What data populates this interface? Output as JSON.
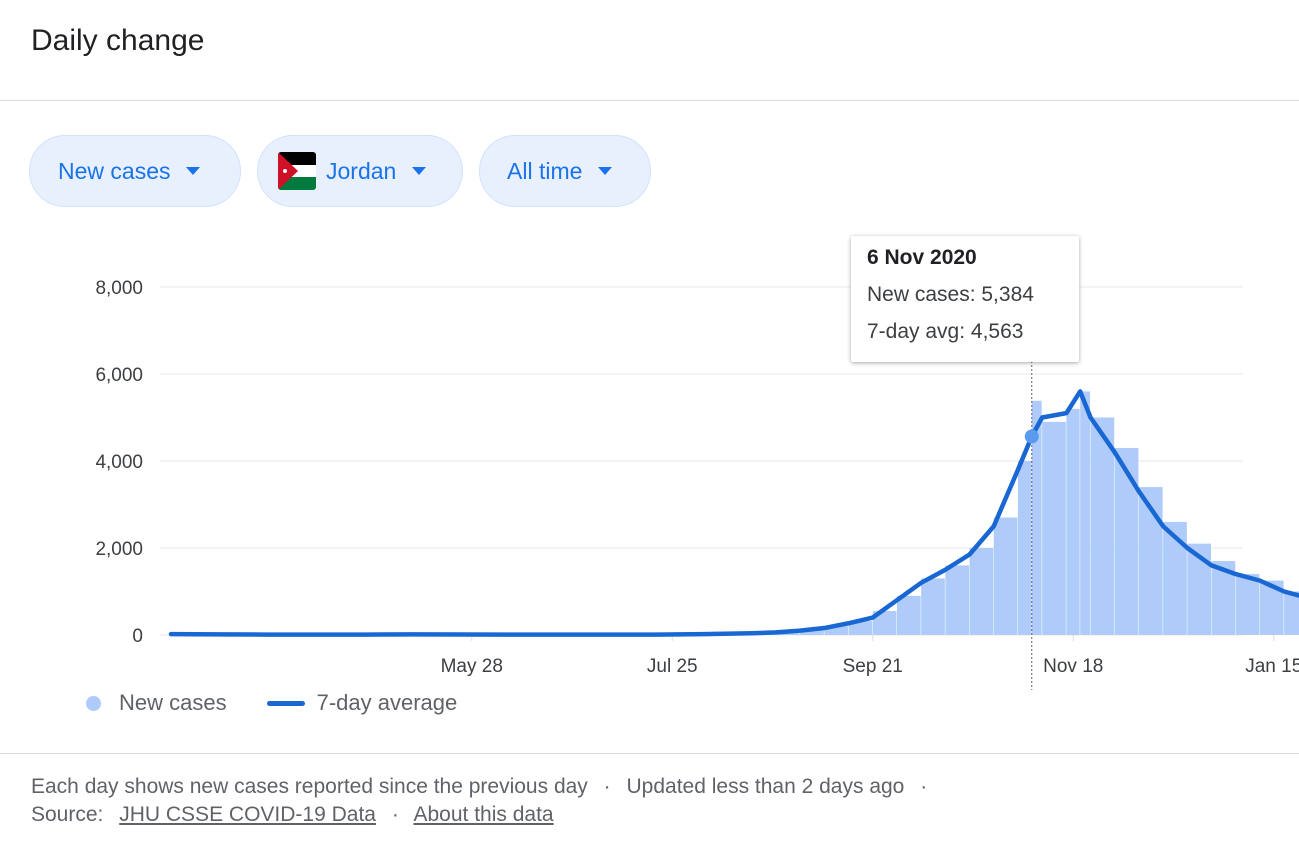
{
  "header": {
    "title": "Daily change"
  },
  "filters": {
    "metric": "New cases",
    "country": "Jordan",
    "range": "All time"
  },
  "tooltip": {
    "date": "6 Nov 2020",
    "new_cases": "New cases: 5,384",
    "avg": "7-day avg: 4,563"
  },
  "legend": {
    "bars": "New cases",
    "line": "7-day average"
  },
  "footer": {
    "note": "Each day shows new cases reported since the previous day",
    "updated": "Updated less than 2 days ago",
    "source_label": "Source:",
    "source_link": "JHU CSSE COVID-19 Data",
    "about_link": "About this data"
  },
  "colors": {
    "bar": "#aecbfa",
    "line": "#1967d2",
    "accent": "#1a73e8",
    "grid": "#e8eaed"
  },
  "chart_data": {
    "type": "bar",
    "title": "",
    "xlabel": "",
    "ylabel": "",
    "ylim": [
      0,
      8000
    ],
    "yticks": [
      "0",
      "2,000",
      "4,000",
      "6,000",
      "8,000"
    ],
    "xticks": [
      "May 28",
      "Jul 25",
      "Sep 21",
      "Nov 18",
      "Jan 15"
    ],
    "x": [
      "2020-03-02",
      "2020-03-16",
      "2020-03-30",
      "2020-04-13",
      "2020-04-27",
      "2020-05-11",
      "2020-05-25",
      "2020-06-08",
      "2020-06-22",
      "2020-07-06",
      "2020-07-20",
      "2020-08-03",
      "2020-08-17",
      "2020-08-24",
      "2020-08-31",
      "2020-09-07",
      "2020-09-14",
      "2020-09-21",
      "2020-09-28",
      "2020-10-05",
      "2020-10-12",
      "2020-10-19",
      "2020-10-26",
      "2020-11-02",
      "2020-11-06",
      "2020-11-09",
      "2020-11-16",
      "2020-11-20",
      "2020-11-23",
      "2020-11-30",
      "2020-12-07",
      "2020-12-14",
      "2020-12-21",
      "2020-12-28",
      "2021-01-04",
      "2021-01-11",
      "2021-01-18",
      "2021-01-25"
    ],
    "series": [
      {
        "name": "New cases",
        "type": "bar",
        "values": [
          5,
          10,
          12,
          8,
          5,
          4,
          10,
          6,
          8,
          5,
          5,
          10,
          20,
          40,
          120,
          200,
          320,
          550,
          900,
          1300,
          1600,
          2000,
          2700,
          4000,
          5384,
          4900,
          5200,
          5600,
          5000,
          4300,
          3400,
          2600,
          2100,
          1700,
          1400,
          1250,
          1000,
          850
        ]
      },
      {
        "name": "7-day average",
        "type": "line",
        "values": [
          20,
          15,
          10,
          8,
          10,
          15,
          12,
          10,
          10,
          8,
          10,
          20,
          40,
          60,
          100,
          160,
          270,
          400,
          800,
          1200,
          1500,
          1850,
          2500,
          3800,
          4563,
          5000,
          5100,
          5600,
          5000,
          4200,
          3300,
          2500,
          2000,
          1600,
          1400,
          1250,
          1000,
          850
        ]
      }
    ],
    "highlight": {
      "x": "2020-11-06",
      "new_cases": 5384,
      "avg": 4563
    },
    "grid": true,
    "legend": "bottom-left"
  }
}
